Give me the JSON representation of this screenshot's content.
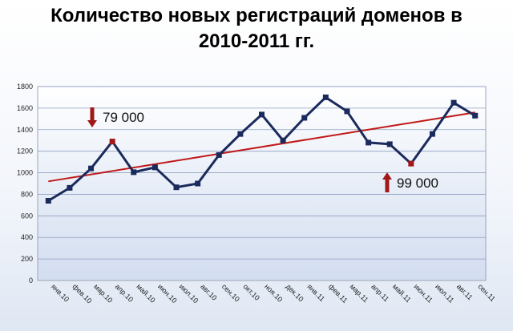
{
  "title_lines": [
    "Количество новых регистраций доменов в",
    "2010-2011 гг."
  ],
  "chart_data": {
    "type": "line",
    "categories": [
      "янв.10",
      "фев.10",
      "мар.10",
      "апр.10",
      "май.10",
      "июн.10",
      "июл.10",
      "авг.10",
      "сен.10",
      "окт.10",
      "ноя.10",
      "дек.10",
      "янв.11",
      "фев.11",
      "мар.11",
      "апр.11",
      "май.11",
      "июн.11",
      "июл.11",
      "авг.11",
      "сен.11"
    ],
    "series": [
      {
        "values": [
          740,
          860,
          1040,
          1290,
          1005,
          1050,
          865,
          900,
          1165,
          1360,
          1540,
          1300,
          1510,
          1700,
          1570,
          1280,
          1265,
          1085,
          1360,
          1650,
          1530
        ],
        "color": "#1a2a5c"
      }
    ],
    "trend": {
      "start": 920,
      "end": 1560,
      "color": "#c01818"
    },
    "highlight_points": [
      3,
      17
    ],
    "highlight_color": "#a01818",
    "ylim": [
      0,
      1800
    ],
    "yticks": [
      0,
      200,
      400,
      600,
      800,
      1000,
      1200,
      1400,
      1600,
      1800
    ],
    "grid": true,
    "annotations": [
      {
        "text": "79 000",
        "arrow": "down",
        "color": "#a01818"
      },
      {
        "text": "99 000",
        "arrow": "up",
        "color": "#a01818"
      }
    ]
  }
}
